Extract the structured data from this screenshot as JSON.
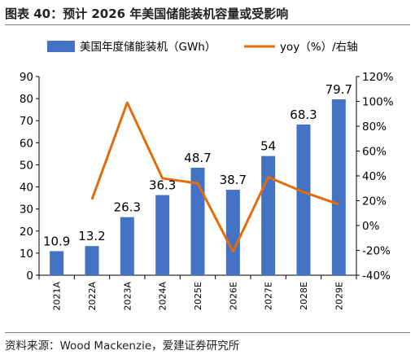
{
  "title": "图表 40：预计 2026 年美国储能装机容量或受影响",
  "source": "资料来源：Wood Mackenzie，爱建证券研究所",
  "chart_data": {
    "type": "bar+line",
    "categories": [
      "2021A",
      "2022A",
      "2023A",
      "2024A",
      "2025E",
      "2026E",
      "2027E",
      "2028E",
      "2029E"
    ],
    "series": [
      {
        "name": "美国年度储能装机（GWh）",
        "type": "bar",
        "axis": "left",
        "color": "#4472C4",
        "values": [
          10.9,
          13.2,
          26.3,
          36.3,
          48.7,
          38.7,
          54,
          68.3,
          79.7
        ],
        "labels": [
          "10.9",
          "13.2",
          "26.3",
          "36.3",
          "48.7",
          "38.7",
          "54",
          "68.3",
          "79.7"
        ]
      },
      {
        "name": "yoy（%）/右轴",
        "type": "line",
        "axis": "right",
        "color": "#E46C0A",
        "values": [
          null,
          21,
          99,
          38,
          34,
          -21,
          39,
          27,
          17
        ]
      }
    ],
    "y_left": {
      "min": 0,
      "max": 90,
      "ticks": [
        "0",
        "10",
        "20",
        "30",
        "40",
        "50",
        "60",
        "70",
        "80",
        "90"
      ]
    },
    "y_right": {
      "min": -40,
      "max": 120,
      "ticks": [
        "-40%",
        "-20%",
        "0%",
        "20%",
        "40%",
        "60%",
        "80%",
        "100%",
        "120%"
      ]
    },
    "grid": false,
    "legend_position": "top"
  }
}
